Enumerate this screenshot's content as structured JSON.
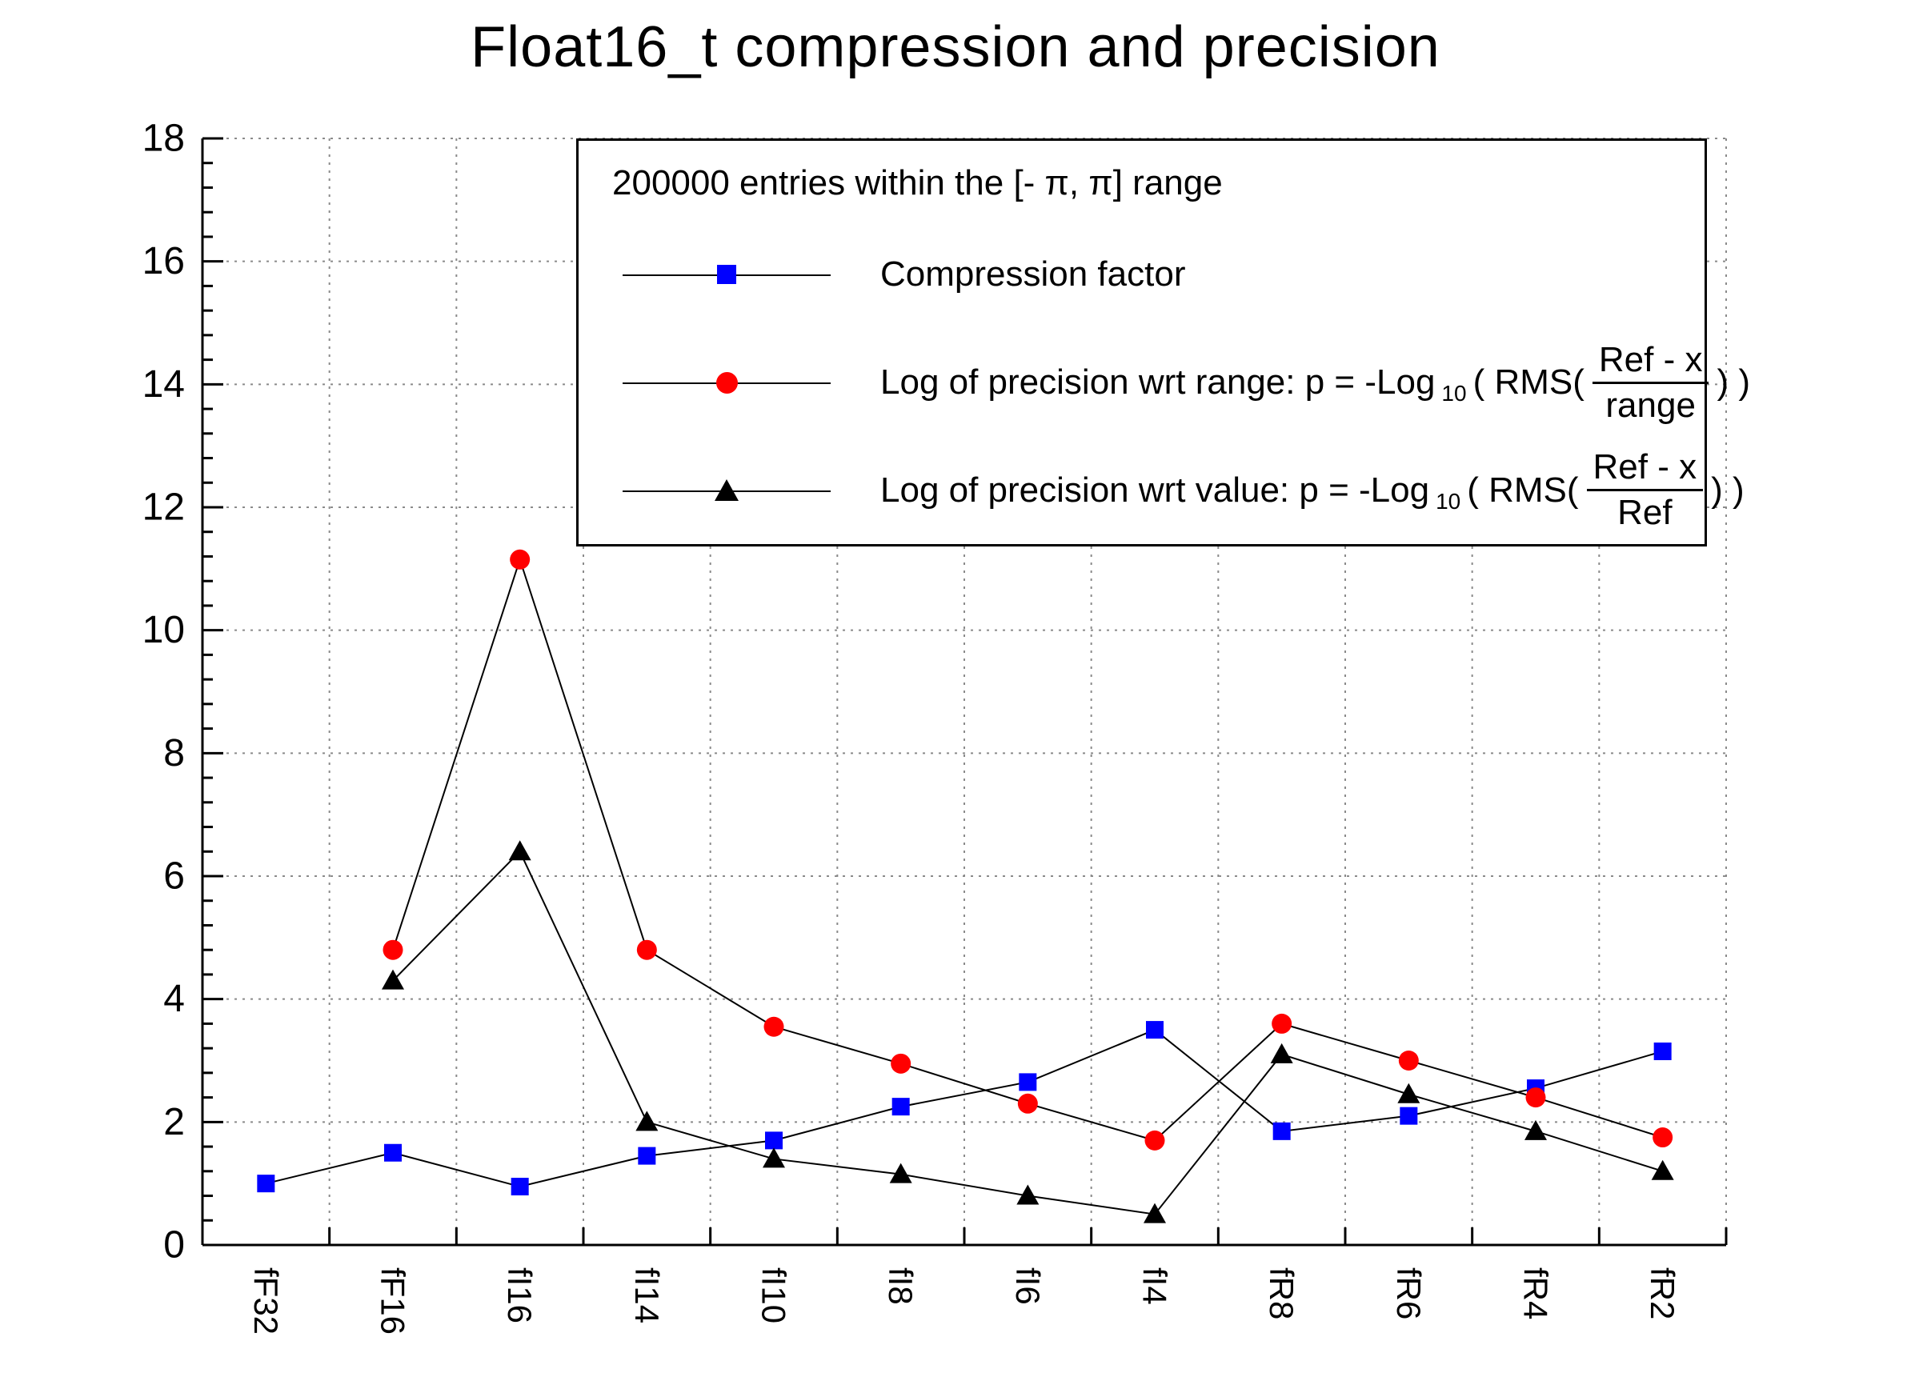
{
  "title": "Float16_t compression and precision",
  "colors": {
    "background": "#ffffff",
    "axis": "#000000",
    "grid": "#8a8a8a",
    "series_line": "#000000",
    "compression": "#0000ff",
    "precision_range": "#ff0000",
    "precision_value": "#000000"
  },
  "legend": {
    "header": "200000 entries within the [- π, π] range",
    "entries": [
      {
        "marker": "square",
        "color": "#0000ff",
        "label": "Compression factor"
      },
      {
        "marker": "circle",
        "color": "#ff0000",
        "prefix": "Log of precision wrt range: p = -Log",
        "sub": "10",
        "mid": "( RMS(",
        "num": "Ref - x",
        "den": "range",
        "suffix": ") )"
      },
      {
        "marker": "triangle",
        "color": "#000000",
        "prefix": "Log of precision wrt value: p = -Log",
        "sub": "10",
        "mid": "( RMS(",
        "num": "Ref - x",
        "den": "Ref",
        "suffix": ") )"
      }
    ]
  },
  "chart_data": {
    "type": "line",
    "title": "Float16_t compression and precision",
    "xlabel": "",
    "ylabel": "",
    "ylim": [
      0,
      18
    ],
    "y_major_step": 2,
    "y_minor_step": 0.4,
    "grid": true,
    "legend_position": "top-right",
    "categories": [
      "fF32",
      "fF16",
      "fI16",
      "fI14",
      "fI10",
      "fI8",
      "fI6",
      "fI4",
      "fR8",
      "fR6",
      "fR4",
      "fR2"
    ],
    "series": [
      {
        "name": "Compression factor",
        "marker": "square",
        "color": "#0000ff",
        "values": [
          1.0,
          1.5,
          0.95,
          1.45,
          1.7,
          2.25,
          2.65,
          3.5,
          1.85,
          2.1,
          2.55,
          3.15
        ]
      },
      {
        "name": "Log of precision wrt range",
        "marker": "circle",
        "color": "#ff0000",
        "values": [
          null,
          4.8,
          11.15,
          4.8,
          3.55,
          2.95,
          2.3,
          1.7,
          3.6,
          3.0,
          2.4,
          1.75
        ]
      },
      {
        "name": "Log of precision wrt value",
        "marker": "triangle",
        "color": "#000000",
        "values": [
          null,
          4.3,
          6.4,
          2.0,
          1.4,
          1.15,
          0.8,
          0.5,
          3.1,
          2.45,
          1.85,
          1.2
        ]
      }
    ]
  }
}
